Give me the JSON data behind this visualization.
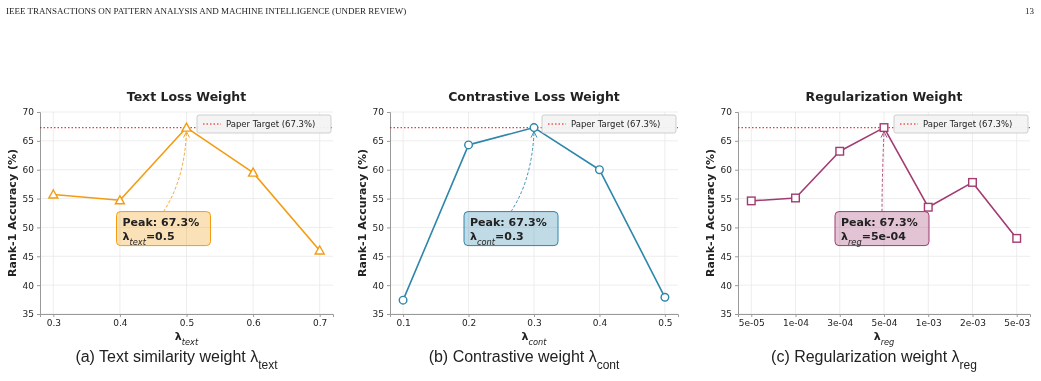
{
  "chart_data": [
    {
      "type": "line",
      "title": "Text Loss Weight",
      "xlabel": "λ$_{text}$",
      "ylabel": "Rank-1 Accuracy (%)",
      "x": [
        0.3,
        0.4,
        0.5,
        0.6,
        0.7
      ],
      "series": [
        {
          "color": "#f39c12",
          "values": [
            55.7,
            54.7,
            67.3,
            59.5,
            46.0
          ]
        }
      ],
      "xlim": [
        0.28,
        0.72
      ],
      "xticks": [
        0.3,
        0.4,
        0.5,
        0.6,
        0.7
      ],
      "ylim": [
        35,
        70
      ],
      "yticks": [
        35,
        40,
        45,
        50,
        55,
        60,
        65,
        70
      ],
      "ref_lines": [
        {
          "axis": "y",
          "value": 67.3,
          "label": "Paper Target (67.3%)",
          "color": "#ff0000",
          "line_style": "dotted"
        }
      ],
      "annotations": [
        "IEEE TRANSACTIONS ON PATTERN ANALYSIS AND MACHINE INTELLIGENCE (UNDER REVIEW)",
        "13",
        {
          "text": "Peak: 67.3%\nλ$_{text}$=0.5",
          "x": 0.5,
          "y": 67.3
        },
        "(a) Text similarity weight λ$_{text}$"
      ],
      "grid": true,
      "legend": "top right",
      "marker": "triangle",
      "line_style": "solid"
    },
    {
      "type": "line",
      "title": "Contrastive Loss Weight",
      "xlabel": "λ$_{cont}$",
      "ylabel": "Rank-1 Accuracy (%)",
      "x": [
        0.1,
        0.2,
        0.3,
        0.4,
        0.5
      ],
      "series": [
        {
          "color": "#2e86ab",
          "values": [
            37.4,
            64.3,
            67.3,
            60.0,
            37.9
          ]
        }
      ],
      "xlim": [
        0.08,
        0.52
      ],
      "xticks": [
        0.1,
        0.2,
        0.3,
        0.4,
        0.5
      ],
      "ylim": [
        35,
        70
      ],
      "yticks": [
        35,
        40,
        45,
        50,
        55,
        60,
        65,
        70
      ],
      "ref_lines": [
        {
          "axis": "y",
          "value": 67.3,
          "label": "Paper Target (67.3%)",
          "color": "#ff0000",
          "line_style": "dotted"
        }
      ],
      "annotations": [
        {
          "text": "Peak: 67.3%\nλ$_{cont}$=0.3",
          "x": 0.3,
          "y": 67.3
        },
        "(b) Contrastive weight λ$_{cont}$"
      ],
      "grid": true,
      "legend": "top right",
      "marker": "circle",
      "line_style": "solid"
    },
    {
      "type": "line",
      "title": "Regularization Weight",
      "xlabel": "λ$_{reg}$",
      "ylabel": "Rank-1 Accuracy (%)",
      "categories": [
        "5e-05",
        "1e-04",
        "3e-04",
        "5e-04",
        "1e-03",
        "2e-03",
        "5e-03"
      ],
      "series": [
        {
          "color": "#a23b72",
          "values": [
            54.6,
            55.1,
            63.2,
            67.3,
            53.5,
            57.8,
            48.1
          ]
        }
      ],
      "ylim": [
        35,
        70
      ],
      "yticks": [
        35,
        40,
        45,
        50,
        55,
        60,
        65,
        70
      ],
      "ref_lines": [
        {
          "axis": "y",
          "value": 67.3,
          "label": "Paper Target (67.3%)",
          "color": "#ff0000",
          "line_style": "dotted"
        }
      ],
      "annotations": [
        {
          "text": "Peak: 67.3%\nλ$_{reg}$=5e-04",
          "x": "5e-04",
          "y": 67.3
        },
        "(c) Regularization weight λ$_{reg}$"
      ],
      "grid": true,
      "legend": "top right",
      "marker": "square",
      "line_style": "solid"
    }
  ]
}
